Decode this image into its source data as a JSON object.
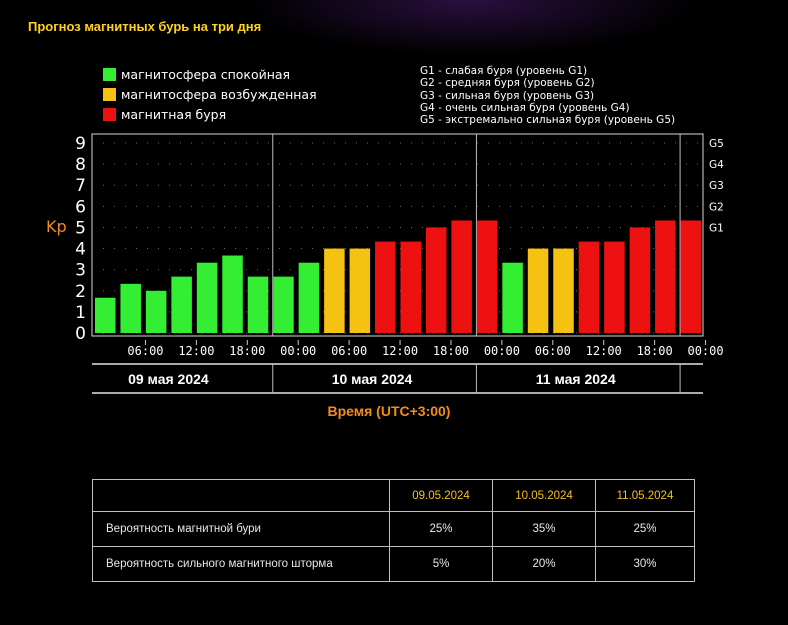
{
  "title": "Прогноз магнитных бурь на три дня",
  "legend": [
    {
      "label": "магнитосфера спокойная",
      "color": "#33ee33"
    },
    {
      "label": "магнитосфера возбужденная",
      "color": "#f5c211"
    },
    {
      "label": "магнитная буря",
      "color": "#ee1111"
    }
  ],
  "storm_levels_legend": [
    "G1 - слабая буря (уровень G1)",
    "G2 - средняя буря (уровень G2)",
    "G3 - сильная буря (уровень G3)",
    "G4 - очень сильная буря (уровень G4)",
    "G5 - экстремально сильная буря (уровень G5)"
  ],
  "chart_data": {
    "type": "bar",
    "ylabel": "Kp",
    "xlabel": "Время (UTC+3:00)",
    "ylim": [
      0,
      9
    ],
    "yticks": [
      "0",
      "1",
      "2",
      "3",
      "4",
      "5",
      "6",
      "7",
      "8",
      "9"
    ],
    "right_axis_labels": [
      {
        "label": "G1",
        "kp": 5
      },
      {
        "label": "G2",
        "kp": 6
      },
      {
        "label": "G3",
        "kp": 7
      },
      {
        "label": "G4",
        "kp": 8
      },
      {
        "label": "G5",
        "kp": 9
      }
    ],
    "days": [
      "09 мая 2024",
      "10 мая 2024",
      "11 мая 2024"
    ],
    "x_tick_labels": [
      "06:00",
      "12:00",
      "18:00",
      "00:00",
      "06:00",
      "12:00",
      "18:00",
      "00:00",
      "06:00",
      "12:00",
      "18:00",
      "00:00"
    ],
    "values": [
      1.67,
      2.33,
      2.0,
      2.67,
      3.33,
      3.67,
      2.67,
      2.67,
      3.33,
      4.0,
      4.0,
      4.33,
      4.33,
      5.0,
      5.33,
      5.33,
      3.33,
      4.0,
      4.0,
      4.33,
      4.33,
      5.0,
      5.33,
      5.33
    ],
    "levels": [
      "quiet",
      "quiet",
      "quiet",
      "quiet",
      "quiet",
      "quiet",
      "quiet",
      "quiet",
      "quiet",
      "active",
      "active",
      "storm",
      "storm",
      "storm",
      "storm",
      "storm",
      "quiet",
      "active",
      "active",
      "storm",
      "storm",
      "storm",
      "storm",
      "storm"
    ],
    "colors": {
      "quiet": "#33ee33",
      "active": "#f5c211",
      "storm": "#ee1111"
    },
    "grid": "dotted"
  },
  "table": {
    "headers": [
      "",
      "09.05.2024",
      "10.05.2024",
      "11.05.2024"
    ],
    "rows": [
      {
        "label": "Вероятность магнитной бури",
        "values": [
          "25%",
          "35%",
          "25%"
        ]
      },
      {
        "label": "Вероятность сильного магнитного шторма",
        "values": [
          "5%",
          "20%",
          "30%"
        ]
      }
    ]
  }
}
